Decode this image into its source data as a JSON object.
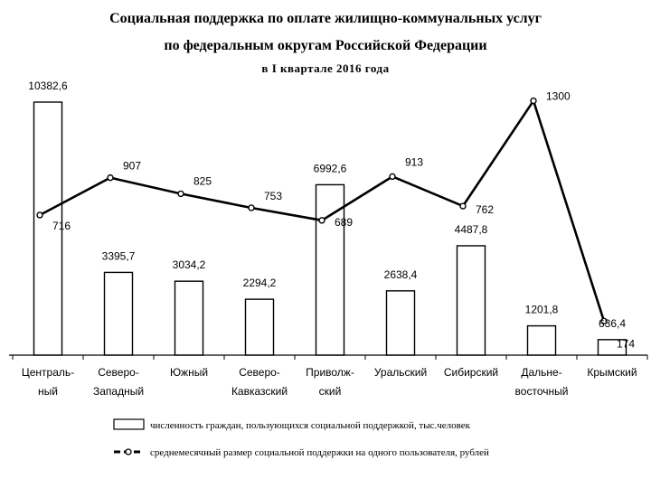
{
  "title": {
    "line1": "Социальная поддержка по оплате жилищно-коммунальных услуг",
    "line2": "по федеральным округам Российской Федерации",
    "line3": "в I квартале 2016 года"
  },
  "legend": {
    "bars": "численность граждан, пользующихся социальной поддержкой, тыс.человек",
    "line": "среднемесячный размер социальной поддержки на одного пользователя, рублей"
  },
  "chart_data": {
    "type": "bar",
    "categories": [
      [
        "Централь-",
        "ный"
      ],
      [
        "Северо-",
        "Западный"
      ],
      [
        "Южный"
      ],
      [
        "Северо-",
        "Кавказский"
      ],
      [
        "Приволж-",
        "ский"
      ],
      [
        "Уральский"
      ],
      [
        "Сибирский"
      ],
      [
        "Дальне-",
        "восточный"
      ],
      [
        "Крымский"
      ]
    ],
    "series": [
      {
        "name": "численность граждан, пользующихся социальной поддержкой, тыс.человек",
        "type": "bar",
        "values": [
          10382.6,
          3395.7,
          3034.2,
          2294.2,
          6992.6,
          2638.4,
          4487.8,
          1201.8,
          636.4
        ],
        "labels": [
          "10382,6",
          "3395,7",
          "3034,2",
          "2294,2",
          "6992,6",
          "2638,4",
          "4487,8",
          "1201,8",
          "636,4"
        ]
      },
      {
        "name": "среднемесячный размер социальной поддержки на одного пользователя, рублей",
        "type": "line",
        "values": [
          716,
          907,
          825,
          753,
          689,
          913,
          762,
          1300,
          174
        ],
        "labels": [
          "716",
          "907",
          "825",
          "753",
          "689",
          "913",
          "762",
          "1300",
          "174"
        ]
      }
    ],
    "grid": false
  }
}
